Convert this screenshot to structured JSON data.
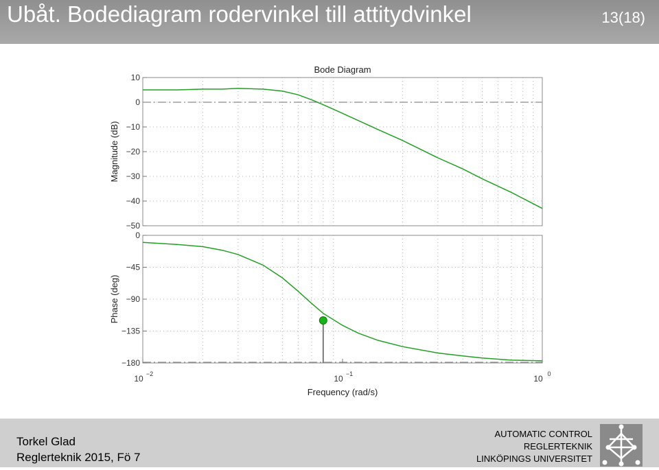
{
  "slide": {
    "title": "Ubåt. Bodediagram rodervinkel till attitydvinkel",
    "page": "13(18)"
  },
  "footer": {
    "author": "Torkel Glad",
    "course": "Reglerteknik 2015, Fö 7",
    "org_lines": [
      "AUTOMATIC CONTROL",
      "REGLERTEKNIK",
      "LINKÖPINGS UNIVERSITET"
    ],
    "logo_icon": "liu-logo-icon"
  },
  "chart_data": [
    {
      "type": "line",
      "title": "Bode Diagram",
      "ylabel": "Magnitude (dB)",
      "xscale": "log",
      "xlim": [
        0.01,
        1
      ],
      "ylim": [
        -50,
        10
      ],
      "yticks": [
        10,
        0,
        -10,
        -20,
        -30,
        -40,
        -50
      ],
      "ytick_labels": [
        "10",
        "0",
        "−10",
        "−20",
        "−30",
        "−40",
        "−50"
      ],
      "grid": true,
      "line_color": "#22a023",
      "series": [
        {
          "x": [
            0.01,
            0.015,
            0.02,
            0.025,
            0.03,
            0.04,
            0.05,
            0.06,
            0.07,
            0.08,
            0.1,
            0.15,
            0.2,
            0.3,
            0.4,
            0.5,
            0.7,
            1.0
          ],
          "values": [
            5,
            5,
            5.3,
            5.3,
            5.6,
            5.3,
            4.5,
            3.0,
            1.0,
            -1.0,
            -4.5,
            -11,
            -15.5,
            -22.5,
            -27,
            -31,
            -36.5,
            -43
          ]
        }
      ]
    },
    {
      "type": "line",
      "xlabel": "Frequency  (rad/s)",
      "ylabel": "Phase (deg)",
      "xscale": "log",
      "xlim": [
        0.01,
        1
      ],
      "ylim": [
        -180,
        0
      ],
      "yticks": [
        0,
        -45,
        -90,
        -135,
        -180
      ],
      "ytick_labels": [
        "0",
        "−45",
        "−90",
        "−135",
        "−180"
      ],
      "xtick_labels": [
        {
          "base": "10",
          "exp": "−2",
          "value": 0.01
        },
        {
          "base": "10",
          "exp": "−1",
          "value": 0.1
        },
        {
          "base": "10",
          "exp": "0",
          "value": 1
        }
      ],
      "grid": true,
      "line_color": "#22a023",
      "series": [
        {
          "x": [
            0.01,
            0.015,
            0.02,
            0.025,
            0.03,
            0.04,
            0.05,
            0.06,
            0.07,
            0.08,
            0.1,
            0.12,
            0.15,
            0.2,
            0.3,
            0.4,
            0.5,
            0.7,
            1.0
          ],
          "values": [
            -10,
            -13,
            -16,
            -21,
            -27,
            -42,
            -60,
            -79,
            -96,
            -110,
            -127,
            -138,
            -148,
            -157,
            -166,
            -170,
            -173,
            -176,
            -177
          ]
        }
      ],
      "marker": {
        "x": 0.08,
        "y": -120
      }
    }
  ]
}
